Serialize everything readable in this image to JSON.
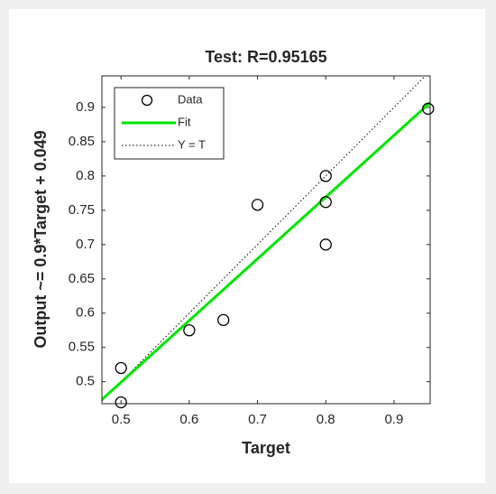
{
  "chart_data": {
    "type": "scatter",
    "title": "Test: R=0.95165",
    "x_label": "Target",
    "y_label": "Output ~= 0.9*Target + 0.049",
    "xlim": [
      0.472,
      0.953
    ],
    "ylim": [
      0.468,
      0.946
    ],
    "xticks": [
      0.5,
      0.6,
      0.7,
      0.8,
      0.9
    ],
    "yticks": [
      0.5,
      0.55,
      0.6,
      0.65,
      0.7,
      0.75,
      0.8,
      0.85,
      0.9
    ],
    "legend": "upper left",
    "series": [
      {
        "name": "Data",
        "kind": "marker",
        "color": "#000000",
        "x": [
          0.5,
          0.5,
          0.6,
          0.65,
          0.7,
          0.8,
          0.8,
          0.8,
          0.95
        ],
        "values": [
          0.52,
          0.47,
          0.575,
          0.59,
          0.758,
          0.8,
          0.762,
          0.7,
          0.898
        ]
      },
      {
        "name": "Fit",
        "kind": "line",
        "color": "#00e600",
        "x": [
          0.472,
          0.953
        ],
        "values": [
          0.474,
          0.907
        ]
      },
      {
        "name": "Y = T",
        "kind": "dotted",
        "color": "#000000",
        "x": [
          0.472,
          0.953
        ],
        "values": [
          0.472,
          0.953
        ]
      }
    ]
  }
}
